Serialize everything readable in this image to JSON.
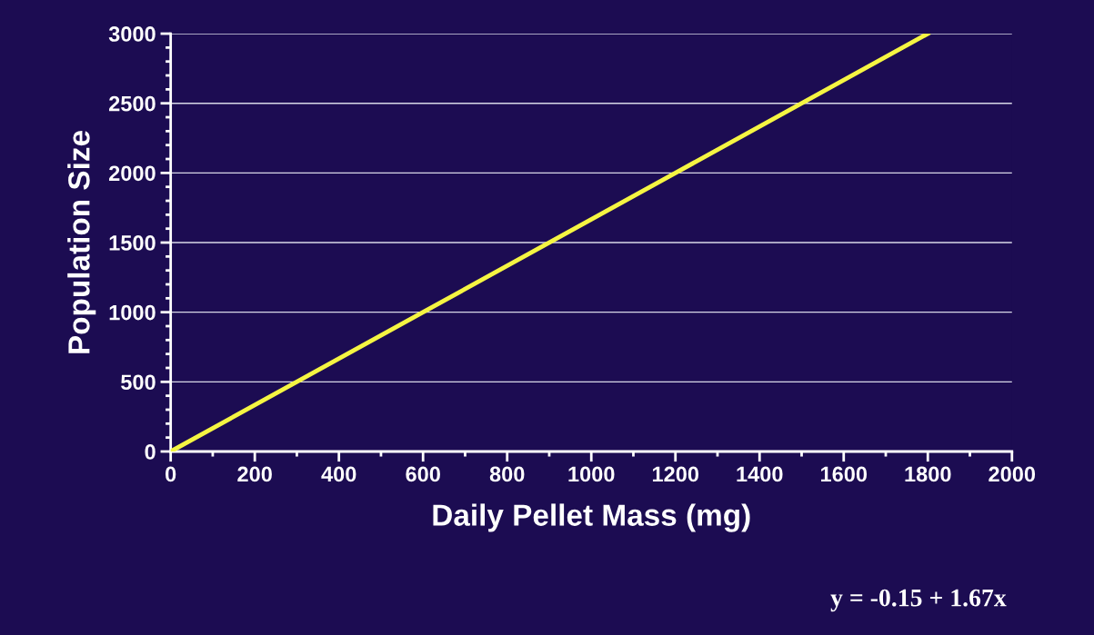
{
  "chart_data": {
    "type": "line",
    "x": [
      0,
      600,
      1200,
      1800
    ],
    "series": [
      {
        "color": "#f5f542",
        "values": [
          0,
          1000,
          2000,
          3000
        ]
      }
    ],
    "xlabel": "Daily Pellet Mass (mg)",
    "ylabel": "Population Size",
    "xlim": [
      0,
      2000
    ],
    "xticks": [
      0,
      200,
      400,
      600,
      800,
      1000,
      1200,
      1400,
      1600,
      1800,
      2000
    ],
    "ylim": [
      0,
      3000
    ],
    "yticks": [
      0,
      500,
      1000,
      1500,
      2000,
      2500,
      3000
    ],
    "grid": "y",
    "marker": "none",
    "line_style": "solid",
    "annotations": [
      "y = -0.15 + 1.67x"
    ]
  }
}
